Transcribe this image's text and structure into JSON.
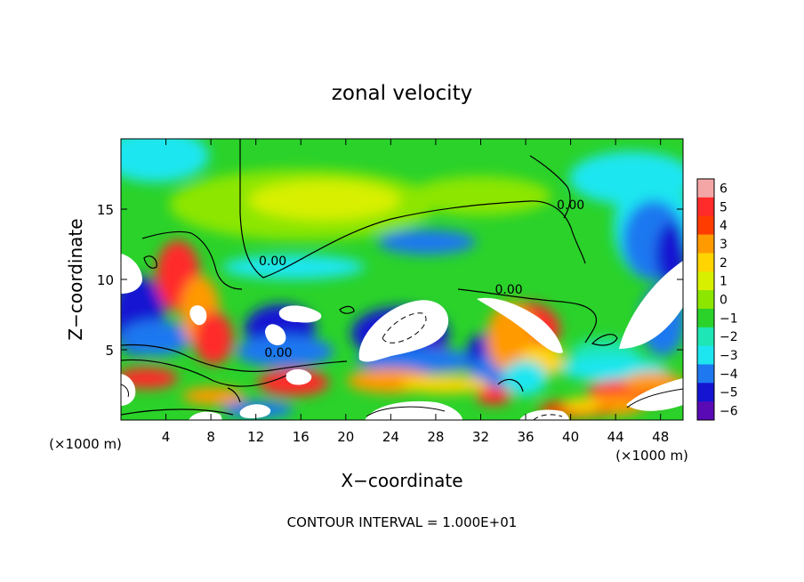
{
  "chart_data": {
    "type": "heatmap",
    "title": "zonal velocity",
    "xlabel": "X−coordinate",
    "ylabel": "Z−coordinate",
    "x_unit_left": "(×1000 m)",
    "x_unit_right": "(×1000 m)",
    "footer": "CONTOUR INTERVAL = 1.000E+01",
    "xlim": [
      0,
      50
    ],
    "ylim": [
      0,
      20
    ],
    "x_ticks": [
      4,
      8,
      12,
      16,
      20,
      24,
      28,
      32,
      36,
      40,
      44,
      48
    ],
    "x_tick_labels": [
      "4",
      "8",
      "12",
      "16",
      "20",
      "24",
      "28",
      "32",
      "36",
      "40",
      "44",
      "48"
    ],
    "y_ticks": [
      5,
      10,
      15
    ],
    "y_tick_labels": [
      "5",
      "10",
      "15"
    ],
    "colorbar": {
      "levels": [
        6,
        5,
        4,
        3,
        2,
        1,
        0,
        -1,
        -2,
        -3,
        -4,
        -5,
        -6
      ],
      "labels": [
        "6",
        "5",
        "4",
        "3",
        "2",
        "1",
        "0",
        "−1",
        "−2",
        "−3",
        "−4",
        "−5",
        "−6"
      ],
      "colors": [
        "#f4a6a6",
        "#ff2a2a",
        "#ff3c00",
        "#ff9a00",
        "#ffd400",
        "#d8f000",
        "#8ce600",
        "#2ad22a",
        "#1ee6b4",
        "#1ee6f0",
        "#1e78f0",
        "#1414d2",
        "#5a0ab4"
      ]
    },
    "contour_labels": [
      {
        "text": "0.00",
        "x": 13.5,
        "y": 11.0
      },
      {
        "text": "0.00",
        "x": 14.0,
        "y": 4.5
      },
      {
        "text": "0.00",
        "x": 34.5,
        "y": 9.0
      },
      {
        "text": "0.00",
        "x": 40.0,
        "y": 15.0
      }
    ]
  }
}
